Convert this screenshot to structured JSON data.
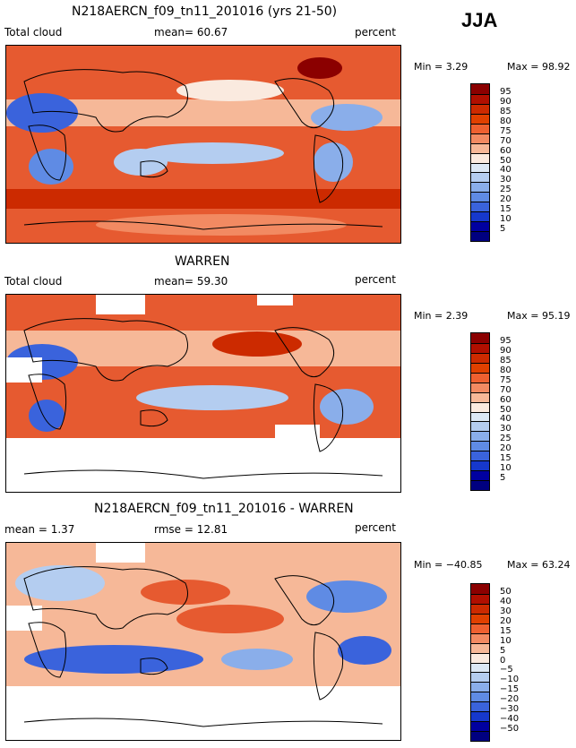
{
  "season": "JJA",
  "panels": [
    {
      "title": "N218AERCN_f09_tn11_201016 (yrs 21-50)",
      "left_label": "Total cloud",
      "center_label": "mean=  60.67",
      "right_label": "percent",
      "min_label": "Min =    3.29",
      "max_label": "Max =  98.92",
      "colorbar_labels": [
        "95",
        "90",
        "85",
        "80",
        "75",
        "70",
        "60",
        "50",
        "40",
        "30",
        "25",
        "20",
        "15",
        "10",
        "5"
      ],
      "colors": [
        "#8b0000",
        "#b00f00",
        "#cc2a00",
        "#e04000",
        "#ee6030",
        "#f28a62",
        "#f6b898",
        "#faeadf",
        "#dce8f5",
        "#b4cdf0",
        "#8aaeea",
        "#5f8be4",
        "#3a63dc",
        "#1638cc",
        "#0000a0",
        "#000080"
      ]
    },
    {
      "title": "WARREN",
      "left_label": "Total cloud",
      "center_label": "mean=  59.30",
      "right_label": "percent",
      "min_label": "Min =    2.39",
      "max_label": "Max =  95.19",
      "colorbar_labels": [
        "95",
        "90",
        "85",
        "80",
        "75",
        "70",
        "60",
        "50",
        "40",
        "30",
        "25",
        "20",
        "15",
        "10",
        "5"
      ],
      "colors": [
        "#8b0000",
        "#b00f00",
        "#cc2a00",
        "#e04000",
        "#ee6030",
        "#f28a62",
        "#f6b898",
        "#faeadf",
        "#dce8f5",
        "#b4cdf0",
        "#8aaeea",
        "#5f8be4",
        "#3a63dc",
        "#1638cc",
        "#0000a0",
        "#000080"
      ]
    },
    {
      "title": "N218AERCN_f09_tn11_201016 - WARREN",
      "left_label": "mean =    1.37",
      "center_label": "rmse =  12.81",
      "right_label": "percent",
      "min_label": "Min = −40.85",
      "max_label": "Max =  63.24",
      "colorbar_labels": [
        "50",
        "40",
        "30",
        "20",
        "15",
        "10",
        "5",
        "0",
        "−5",
        "−10",
        "−15",
        "−20",
        "−30",
        "−40",
        "−50"
      ],
      "colors": [
        "#8b0000",
        "#b00f00",
        "#cc2a00",
        "#e04000",
        "#ee6030",
        "#f28a62",
        "#f6b898",
        "#faeadf",
        "#dce8f5",
        "#b4cdf0",
        "#8aaeea",
        "#5f8be4",
        "#3a63dc",
        "#1638cc",
        "#0000a0",
        "#000080"
      ]
    }
  ]
}
